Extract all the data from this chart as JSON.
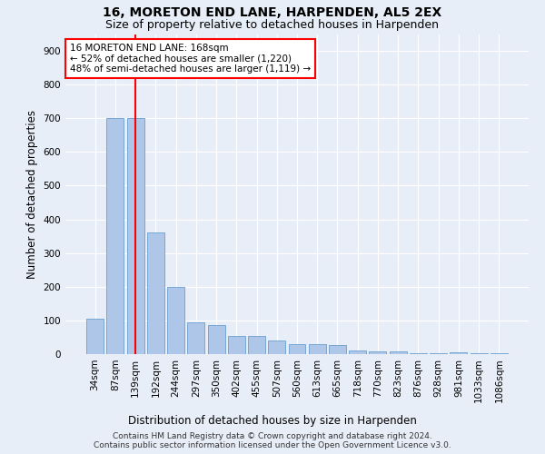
{
  "title": "16, MORETON END LANE, HARPENDEN, AL5 2EX",
  "subtitle": "Size of property relative to detached houses in Harpenden",
  "xlabel": "Distribution of detached houses by size in Harpenden",
  "ylabel": "Number of detached properties",
  "categories": [
    "34sqm",
    "87sqm",
    "139sqm",
    "192sqm",
    "244sqm",
    "297sqm",
    "350sqm",
    "402sqm",
    "455sqm",
    "507sqm",
    "560sqm",
    "613sqm",
    "665sqm",
    "718sqm",
    "770sqm",
    "823sqm",
    "876sqm",
    "928sqm",
    "981sqm",
    "1033sqm",
    "1086sqm"
  ],
  "values": [
    105,
    700,
    700,
    360,
    200,
    93,
    87,
    55,
    55,
    40,
    30,
    30,
    27,
    10,
    8,
    8,
    3,
    3,
    5,
    3,
    2
  ],
  "bar_color": "#aec6e8",
  "bar_edge_color": "#6a9fd0",
  "vline_x_index": 2,
  "vline_color": "red",
  "annotation_text": "16 MORETON END LANE: 168sqm\n← 52% of detached houses are smaller (1,220)\n48% of semi-detached houses are larger (1,119) →",
  "annotation_box_color": "white",
  "annotation_box_edge_color": "red",
  "ylim": [
    0,
    950
  ],
  "yticks": [
    0,
    100,
    200,
    300,
    400,
    500,
    600,
    700,
    800,
    900
  ],
  "footer1": "Contains HM Land Registry data © Crown copyright and database right 2024.",
  "footer2": "Contains public sector information licensed under the Open Government Licence v3.0.",
  "bg_color": "#e8eef8",
  "plot_bg_color": "#e8eef8",
  "title_fontsize": 10,
  "subtitle_fontsize": 9,
  "axis_label_fontsize": 8.5,
  "tick_fontsize": 7.5,
  "footer_fontsize": 6.5
}
